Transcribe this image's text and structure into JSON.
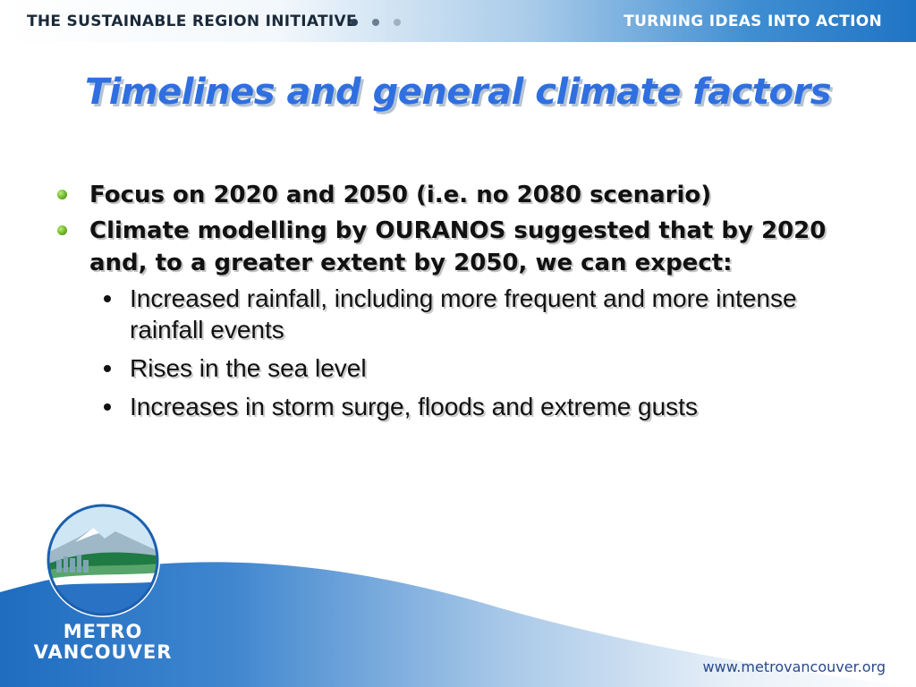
{
  "header": {
    "left_text": "THE SUSTAINABLE REGION INITIATIVE",
    "right_text": "TURNING IDEAS INTO ACTION",
    "dot_color": "#2c3e55"
  },
  "title": "Timelines and general climate factors",
  "bullets": [
    {
      "text": "Focus on 2020 and 2050 (i.e. no 2080 scenario)",
      "sub": []
    },
    {
      "text": "Climate modelling by OURANOS suggested that by 2020 and, to a greater extent by 2050, we can expect:",
      "sub": [
        "Increased rainfall, including more frequent and more intense rainfall events",
        "Rises in the sea level",
        "Increases in storm surge, floods and extreme gusts"
      ]
    }
  ],
  "logo": {
    "line1": "METRO",
    "line2": "VANCOUVER"
  },
  "footer": {
    "url": "www.metrovancouver.org"
  },
  "colors": {
    "title": "#2f6fe0",
    "accent_bullet": "#5aa31a",
    "brand_blue": "#1f74c4"
  }
}
